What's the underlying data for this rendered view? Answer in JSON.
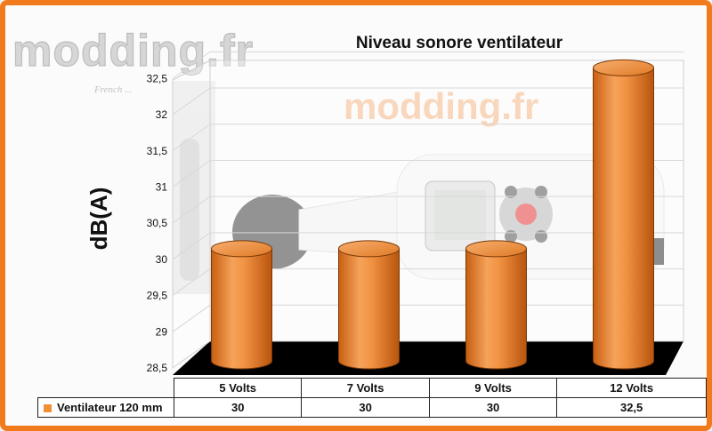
{
  "watermark": {
    "logo": "modding.fr",
    "tagline": "French ..."
  },
  "chart_data": {
    "type": "bar",
    "title": "Niveau sonore ventilateur",
    "ylabel": "dB(A)",
    "xlabel": "",
    "ylim": [
      28.5,
      32.75
    ],
    "yticks": [
      "28,5",
      "29",
      "29,5",
      "30",
      "30,5",
      "31",
      "31,5",
      "32",
      "32,5"
    ],
    "categories": [
      "5 Volts",
      "7 Volts",
      "9 Volts",
      "12 Volts"
    ],
    "series": [
      {
        "name": "Ventilateur 120 mm",
        "values": [
          30,
          30,
          30,
          32.5
        ],
        "labels": [
          "30",
          "30",
          "30",
          "32,5"
        ],
        "color": "#f0913a"
      }
    ],
    "grid": true,
    "legend": "data-table"
  }
}
